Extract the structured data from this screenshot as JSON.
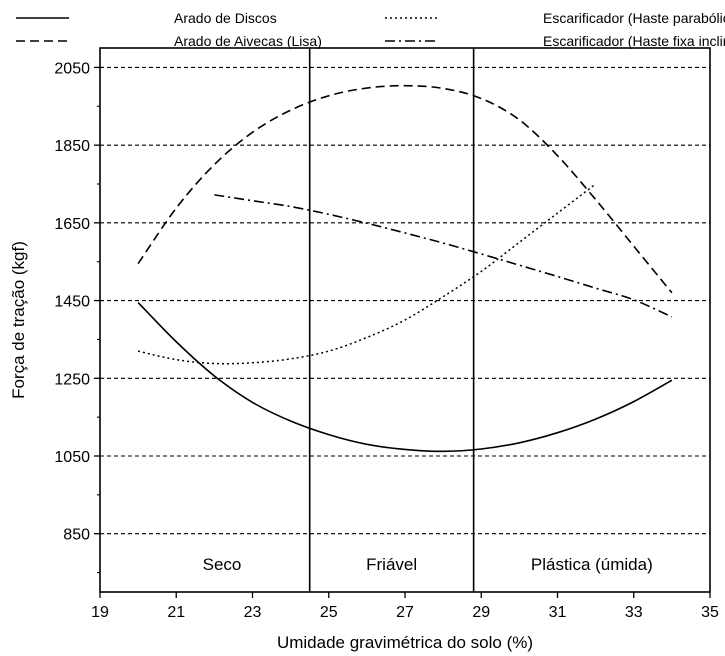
{
  "chart_data": {
    "type": "line",
    "title": "",
    "xlabel": "Umidade gravimétrica do solo (%)",
    "ylabel": "Força de tração (kgf)",
    "xlim": [
      19,
      35
    ],
    "ylim": [
      700,
      2100
    ],
    "xticks": [
      19,
      21,
      23,
      25,
      27,
      29,
      31,
      33,
      35
    ],
    "yticks": [
      850,
      1050,
      1250,
      1450,
      1650,
      1850,
      2050
    ],
    "grid": "horizontal dashed at y ticks",
    "legend_position": "top, above plot",
    "zone_dividers": [
      24.5,
      28.8
    ],
    "zones": [
      {
        "label": "Seco",
        "x_center": 22.2
      },
      {
        "label": "Friável",
        "x_center": 26.65
      },
      {
        "label": "Plástica (úmida)",
        "x_center": 31.9
      }
    ],
    "series": [
      {
        "name": "Arado de Discos",
        "style": "solid",
        "x": [
          20,
          21,
          22,
          23,
          24,
          25,
          26,
          27,
          28,
          29,
          30,
          31,
          32,
          33,
          34
        ],
        "y": [
          1445,
          1344,
          1256,
          1188,
          1140,
          1105,
          1080,
          1067,
          1062,
          1068,
          1084,
          1110,
          1145,
          1190,
          1245
        ]
      },
      {
        "name": "Arado de Aivecas (Lisa)",
        "style": "dashed",
        "x": [
          20,
          21,
          22,
          23,
          24,
          25,
          26,
          27,
          28,
          29,
          30,
          31,
          32,
          33,
          34
        ],
        "y": [
          1545,
          1688,
          1800,
          1883,
          1940,
          1977,
          1997,
          2003,
          1996,
          1970,
          1915,
          1823,
          1710,
          1590,
          1470
        ]
      },
      {
        "name": "Escarificador (Haste parabólica)",
        "style": "dotted",
        "x": [
          20,
          21,
          22,
          23,
          24,
          25,
          26,
          27,
          28,
          29,
          30,
          31,
          32
        ],
        "y": [
          1320,
          1298,
          1288,
          1290,
          1300,
          1320,
          1355,
          1400,
          1460,
          1525,
          1600,
          1675,
          1750
        ]
      },
      {
        "name": "Escarificador (Haste fixa inclinada)",
        "style": "dashdot",
        "x": [
          22,
          23,
          24,
          25,
          26,
          27,
          28,
          29,
          30,
          31,
          32,
          33,
          34
        ],
        "y": [
          1722,
          1707,
          1692,
          1672,
          1649,
          1624,
          1598,
          1570,
          1541,
          1512,
          1482,
          1452,
          1408
        ]
      }
    ]
  }
}
